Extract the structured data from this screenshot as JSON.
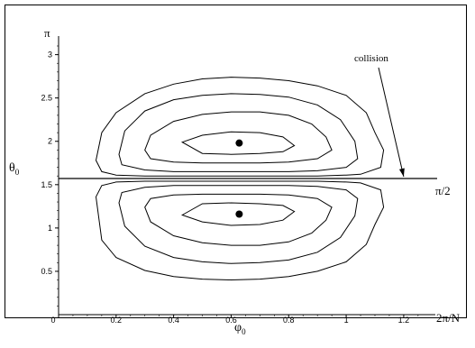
{
  "chart_data": {
    "type": "contour",
    "xlim": [
      0,
      1.31
    ],
    "ylim": [
      0,
      3.1416
    ],
    "x_ticks": [
      {
        "value": 0,
        "label": "0"
      },
      {
        "value": 0.2,
        "label": "0.2"
      },
      {
        "value": 0.4,
        "label": "0.4"
      },
      {
        "value": 0.6,
        "label": "0.6"
      },
      {
        "value": 0.8,
        "label": "0.8"
      },
      {
        "value": 1.0,
        "label": "1"
      },
      {
        "value": 1.2,
        "label": "1.2"
      }
    ],
    "y_ticks": [
      {
        "value": 0.5,
        "label": "0.5"
      },
      {
        "value": 1.0,
        "label": "1"
      },
      {
        "value": 1.5,
        "label": "1.5"
      },
      {
        "value": 2.0,
        "label": "2"
      },
      {
        "value": 2.5,
        "label": "2.5"
      },
      {
        "value": 3.0,
        "label": "3"
      }
    ],
    "y_top_label": "π",
    "x_end_label": "2π/N",
    "xlabel": "φ",
    "xlabel_sub": "0",
    "ylabel": "θ",
    "ylabel_sub": "0",
    "collision_line": {
      "y": 1.5708,
      "label": "π/2"
    },
    "annotation": {
      "text": "collision",
      "points_to_x": 1.2,
      "points_to_y": 1.5708
    },
    "centers": [
      {
        "x": 0.628,
        "y": 1.98
      },
      {
        "x": 0.628,
        "y": 1.16
      }
    ],
    "contours_upper": [
      {
        "x": [
          0.13,
          0.15,
          0.2,
          0.3,
          0.4,
          0.5,
          0.6,
          0.7,
          0.8,
          0.9,
          1.0,
          1.07,
          1.1,
          1.13,
          1.12,
          1.05,
          1.0,
          0.9,
          0.8,
          0.7,
          0.6,
          0.5,
          0.4,
          0.3,
          0.2,
          0.15,
          0.13
        ],
        "y": [
          1.78,
          2.1,
          2.33,
          2.55,
          2.66,
          2.72,
          2.74,
          2.73,
          2.7,
          2.64,
          2.53,
          2.33,
          2.1,
          1.9,
          1.7,
          1.62,
          1.61,
          1.6,
          1.6,
          1.6,
          1.6,
          1.6,
          1.6,
          1.6,
          1.61,
          1.65,
          1.78
        ]
      },
      {
        "x": [
          0.21,
          0.23,
          0.3,
          0.4,
          0.5,
          0.6,
          0.7,
          0.8,
          0.9,
          0.98,
          1.03,
          1.04,
          1.0,
          0.9,
          0.8,
          0.7,
          0.6,
          0.5,
          0.4,
          0.3,
          0.22,
          0.21
        ],
        "y": [
          1.85,
          2.12,
          2.35,
          2.48,
          2.53,
          2.55,
          2.54,
          2.51,
          2.42,
          2.25,
          2.0,
          1.8,
          1.7,
          1.66,
          1.65,
          1.65,
          1.65,
          1.65,
          1.65,
          1.67,
          1.73,
          1.85
        ]
      },
      {
        "x": [
          0.3,
          0.32,
          0.4,
          0.5,
          0.6,
          0.7,
          0.8,
          0.88,
          0.93,
          0.95,
          0.9,
          0.8,
          0.7,
          0.6,
          0.5,
          0.4,
          0.32,
          0.3
        ],
        "y": [
          1.9,
          2.07,
          2.23,
          2.31,
          2.34,
          2.34,
          2.3,
          2.2,
          2.05,
          1.9,
          1.8,
          1.76,
          1.75,
          1.75,
          1.75,
          1.76,
          1.8,
          1.9
        ]
      },
      {
        "x": [
          0.43,
          0.5,
          0.6,
          0.7,
          0.78,
          0.82,
          0.78,
          0.7,
          0.6,
          0.5,
          0.43
        ],
        "y": [
          1.99,
          2.07,
          2.11,
          2.1,
          2.05,
          1.95,
          1.88,
          1.86,
          1.85,
          1.86,
          1.99
        ]
      }
    ],
    "contours_lower": [
      {
        "x": [
          0.13,
          0.15,
          0.2,
          0.3,
          0.4,
          0.5,
          0.6,
          0.7,
          0.8,
          0.9,
          1.0,
          1.05,
          1.12,
          1.13,
          1.1,
          1.07,
          1.0,
          0.9,
          0.8,
          0.7,
          0.6,
          0.5,
          0.4,
          0.3,
          0.2,
          0.15,
          0.13
        ],
        "y": [
          1.36,
          1.49,
          1.53,
          1.54,
          1.54,
          1.54,
          1.54,
          1.54,
          1.54,
          1.54,
          1.53,
          1.52,
          1.44,
          1.24,
          1.04,
          0.81,
          0.61,
          0.5,
          0.44,
          0.41,
          0.4,
          0.41,
          0.44,
          0.51,
          0.66,
          0.86,
          1.36
        ]
      },
      {
        "x": [
          0.21,
          0.22,
          0.3,
          0.4,
          0.5,
          0.6,
          0.7,
          0.8,
          0.9,
          1.0,
          1.04,
          1.03,
          0.98,
          0.9,
          0.8,
          0.7,
          0.6,
          0.5,
          0.4,
          0.3,
          0.23,
          0.21
        ],
        "y": [
          1.29,
          1.41,
          1.47,
          1.49,
          1.49,
          1.49,
          1.49,
          1.49,
          1.48,
          1.44,
          1.34,
          1.14,
          0.89,
          0.72,
          0.63,
          0.6,
          0.59,
          0.61,
          0.66,
          0.79,
          1.02,
          1.29
        ]
      },
      {
        "x": [
          0.3,
          0.32,
          0.4,
          0.5,
          0.6,
          0.7,
          0.8,
          0.9,
          0.95,
          0.93,
          0.88,
          0.8,
          0.7,
          0.6,
          0.5,
          0.4,
          0.32,
          0.3
        ],
        "y": [
          1.24,
          1.34,
          1.38,
          1.39,
          1.39,
          1.39,
          1.38,
          1.34,
          1.24,
          1.09,
          0.94,
          0.84,
          0.8,
          0.8,
          0.83,
          0.91,
          1.07,
          1.24
        ]
      },
      {
        "x": [
          0.43,
          0.5,
          0.6,
          0.7,
          0.78,
          0.82,
          0.78,
          0.7,
          0.6,
          0.5,
          0.43
        ],
        "y": [
          1.15,
          1.28,
          1.29,
          1.28,
          1.26,
          1.19,
          1.09,
          1.04,
          1.03,
          1.07,
          1.15
        ]
      }
    ],
    "grid": false,
    "legend": "none"
  }
}
